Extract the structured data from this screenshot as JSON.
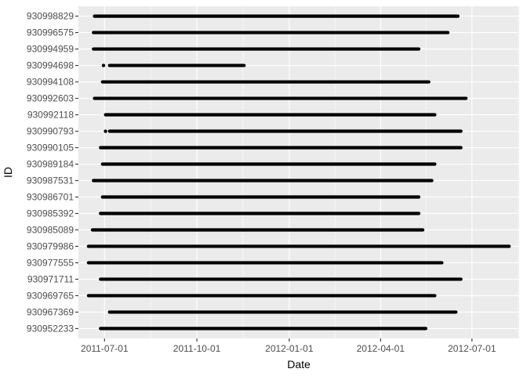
{
  "chart_data": {
    "type": "line",
    "xlabel": "Date",
    "ylabel": "ID",
    "x_ticks": [
      "2011-07-01",
      "2011-10-01",
      "2012-01-01",
      "2012-04-01",
      "2012-07-01"
    ],
    "xlim": [
      "2011-06-05",
      "2012-08-17"
    ],
    "grid": true,
    "legend": "none",
    "series": [
      {
        "id": "930998829",
        "segments": [
          [
            "2011-06-21",
            "2012-06-17"
          ]
        ]
      },
      {
        "id": "930996575",
        "segments": [
          [
            "2011-06-20",
            "2012-06-07"
          ]
        ]
      },
      {
        "id": "930994959",
        "segments": [
          [
            "2011-06-20",
            "2012-05-09"
          ]
        ]
      },
      {
        "id": "930994698",
        "segments": [
          [
            "2011-06-30",
            "2011-06-30"
          ],
          [
            "2011-07-06",
            "2011-11-17"
          ]
        ]
      },
      {
        "id": "930994108",
        "segments": [
          [
            "2011-06-29",
            "2012-05-19"
          ]
        ]
      },
      {
        "id": "930992603",
        "segments": [
          [
            "2011-06-21",
            "2012-06-25"
          ]
        ]
      },
      {
        "id": "930992118",
        "segments": [
          [
            "2011-07-02",
            "2012-05-25"
          ]
        ]
      },
      {
        "id": "930990793",
        "segments": [
          [
            "2011-07-02",
            "2011-07-02"
          ],
          [
            "2011-07-06",
            "2012-06-20"
          ]
        ]
      },
      {
        "id": "930990105",
        "segments": [
          [
            "2011-06-27",
            "2012-06-20"
          ]
        ]
      },
      {
        "id": "930989184",
        "segments": [
          [
            "2011-06-29",
            "2012-05-25"
          ]
        ]
      },
      {
        "id": "930987531",
        "segments": [
          [
            "2011-06-20",
            "2012-05-22"
          ]
        ]
      },
      {
        "id": "930986701",
        "segments": [
          [
            "2011-06-29",
            "2012-05-09"
          ]
        ]
      },
      {
        "id": "930985392",
        "segments": [
          [
            "2011-06-27",
            "2012-05-09"
          ]
        ]
      },
      {
        "id": "930985089",
        "segments": [
          [
            "2011-06-19",
            "2012-05-13"
          ]
        ]
      },
      {
        "id": "930979986",
        "segments": [
          [
            "2011-06-15",
            "2012-08-07"
          ]
        ]
      },
      {
        "id": "930977555",
        "segments": [
          [
            "2011-06-15",
            "2012-06-01"
          ]
        ]
      },
      {
        "id": "930971711",
        "segments": [
          [
            "2011-06-27",
            "2012-06-20"
          ]
        ]
      },
      {
        "id": "930969765",
        "segments": [
          [
            "2011-06-15",
            "2012-05-25"
          ]
        ]
      },
      {
        "id": "930967369",
        "segments": [
          [
            "2011-07-06",
            "2012-06-15"
          ]
        ]
      },
      {
        "id": "930952233",
        "segments": [
          [
            "2011-06-27",
            "2012-05-16"
          ]
        ]
      }
    ]
  }
}
